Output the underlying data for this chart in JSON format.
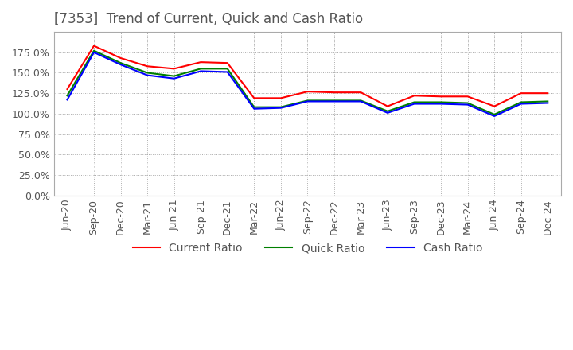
{
  "title": "[7353]  Trend of Current, Quick and Cash Ratio",
  "x_labels": [
    "Jun-20",
    "Sep-20",
    "Dec-20",
    "Mar-21",
    "Jun-21",
    "Sep-21",
    "Dec-21",
    "Mar-22",
    "Jun-22",
    "Sep-22",
    "Dec-22",
    "Mar-23",
    "Jun-23",
    "Sep-23",
    "Dec-23",
    "Mar-24",
    "Jun-24",
    "Sep-24",
    "Dec-24"
  ],
  "current_ratio": [
    130,
    183,
    168,
    158,
    155,
    163,
    162,
    119,
    119,
    127,
    126,
    126,
    109,
    122,
    121,
    121,
    109,
    125,
    125
  ],
  "quick_ratio": [
    122,
    177,
    162,
    150,
    146,
    155,
    155,
    108,
    108,
    116,
    116,
    116,
    103,
    114,
    114,
    113,
    99,
    114,
    115
  ],
  "cash_ratio": [
    117,
    175,
    160,
    147,
    143,
    152,
    151,
    106,
    107,
    115,
    115,
    115,
    101,
    112,
    112,
    111,
    97,
    112,
    113
  ],
  "current_color": "#ff0000",
  "quick_color": "#008000",
  "cash_color": "#0000ff",
  "ylim": [
    0,
    200
  ],
  "yticks": [
    0,
    25,
    50,
    75,
    100,
    125,
    150,
    175
  ],
  "background_color": "#ffffff",
  "grid_color": "#aaaaaa",
  "title_color": "#555555",
  "title_fontsize": 12,
  "legend_fontsize": 10,
  "tick_fontsize": 9
}
